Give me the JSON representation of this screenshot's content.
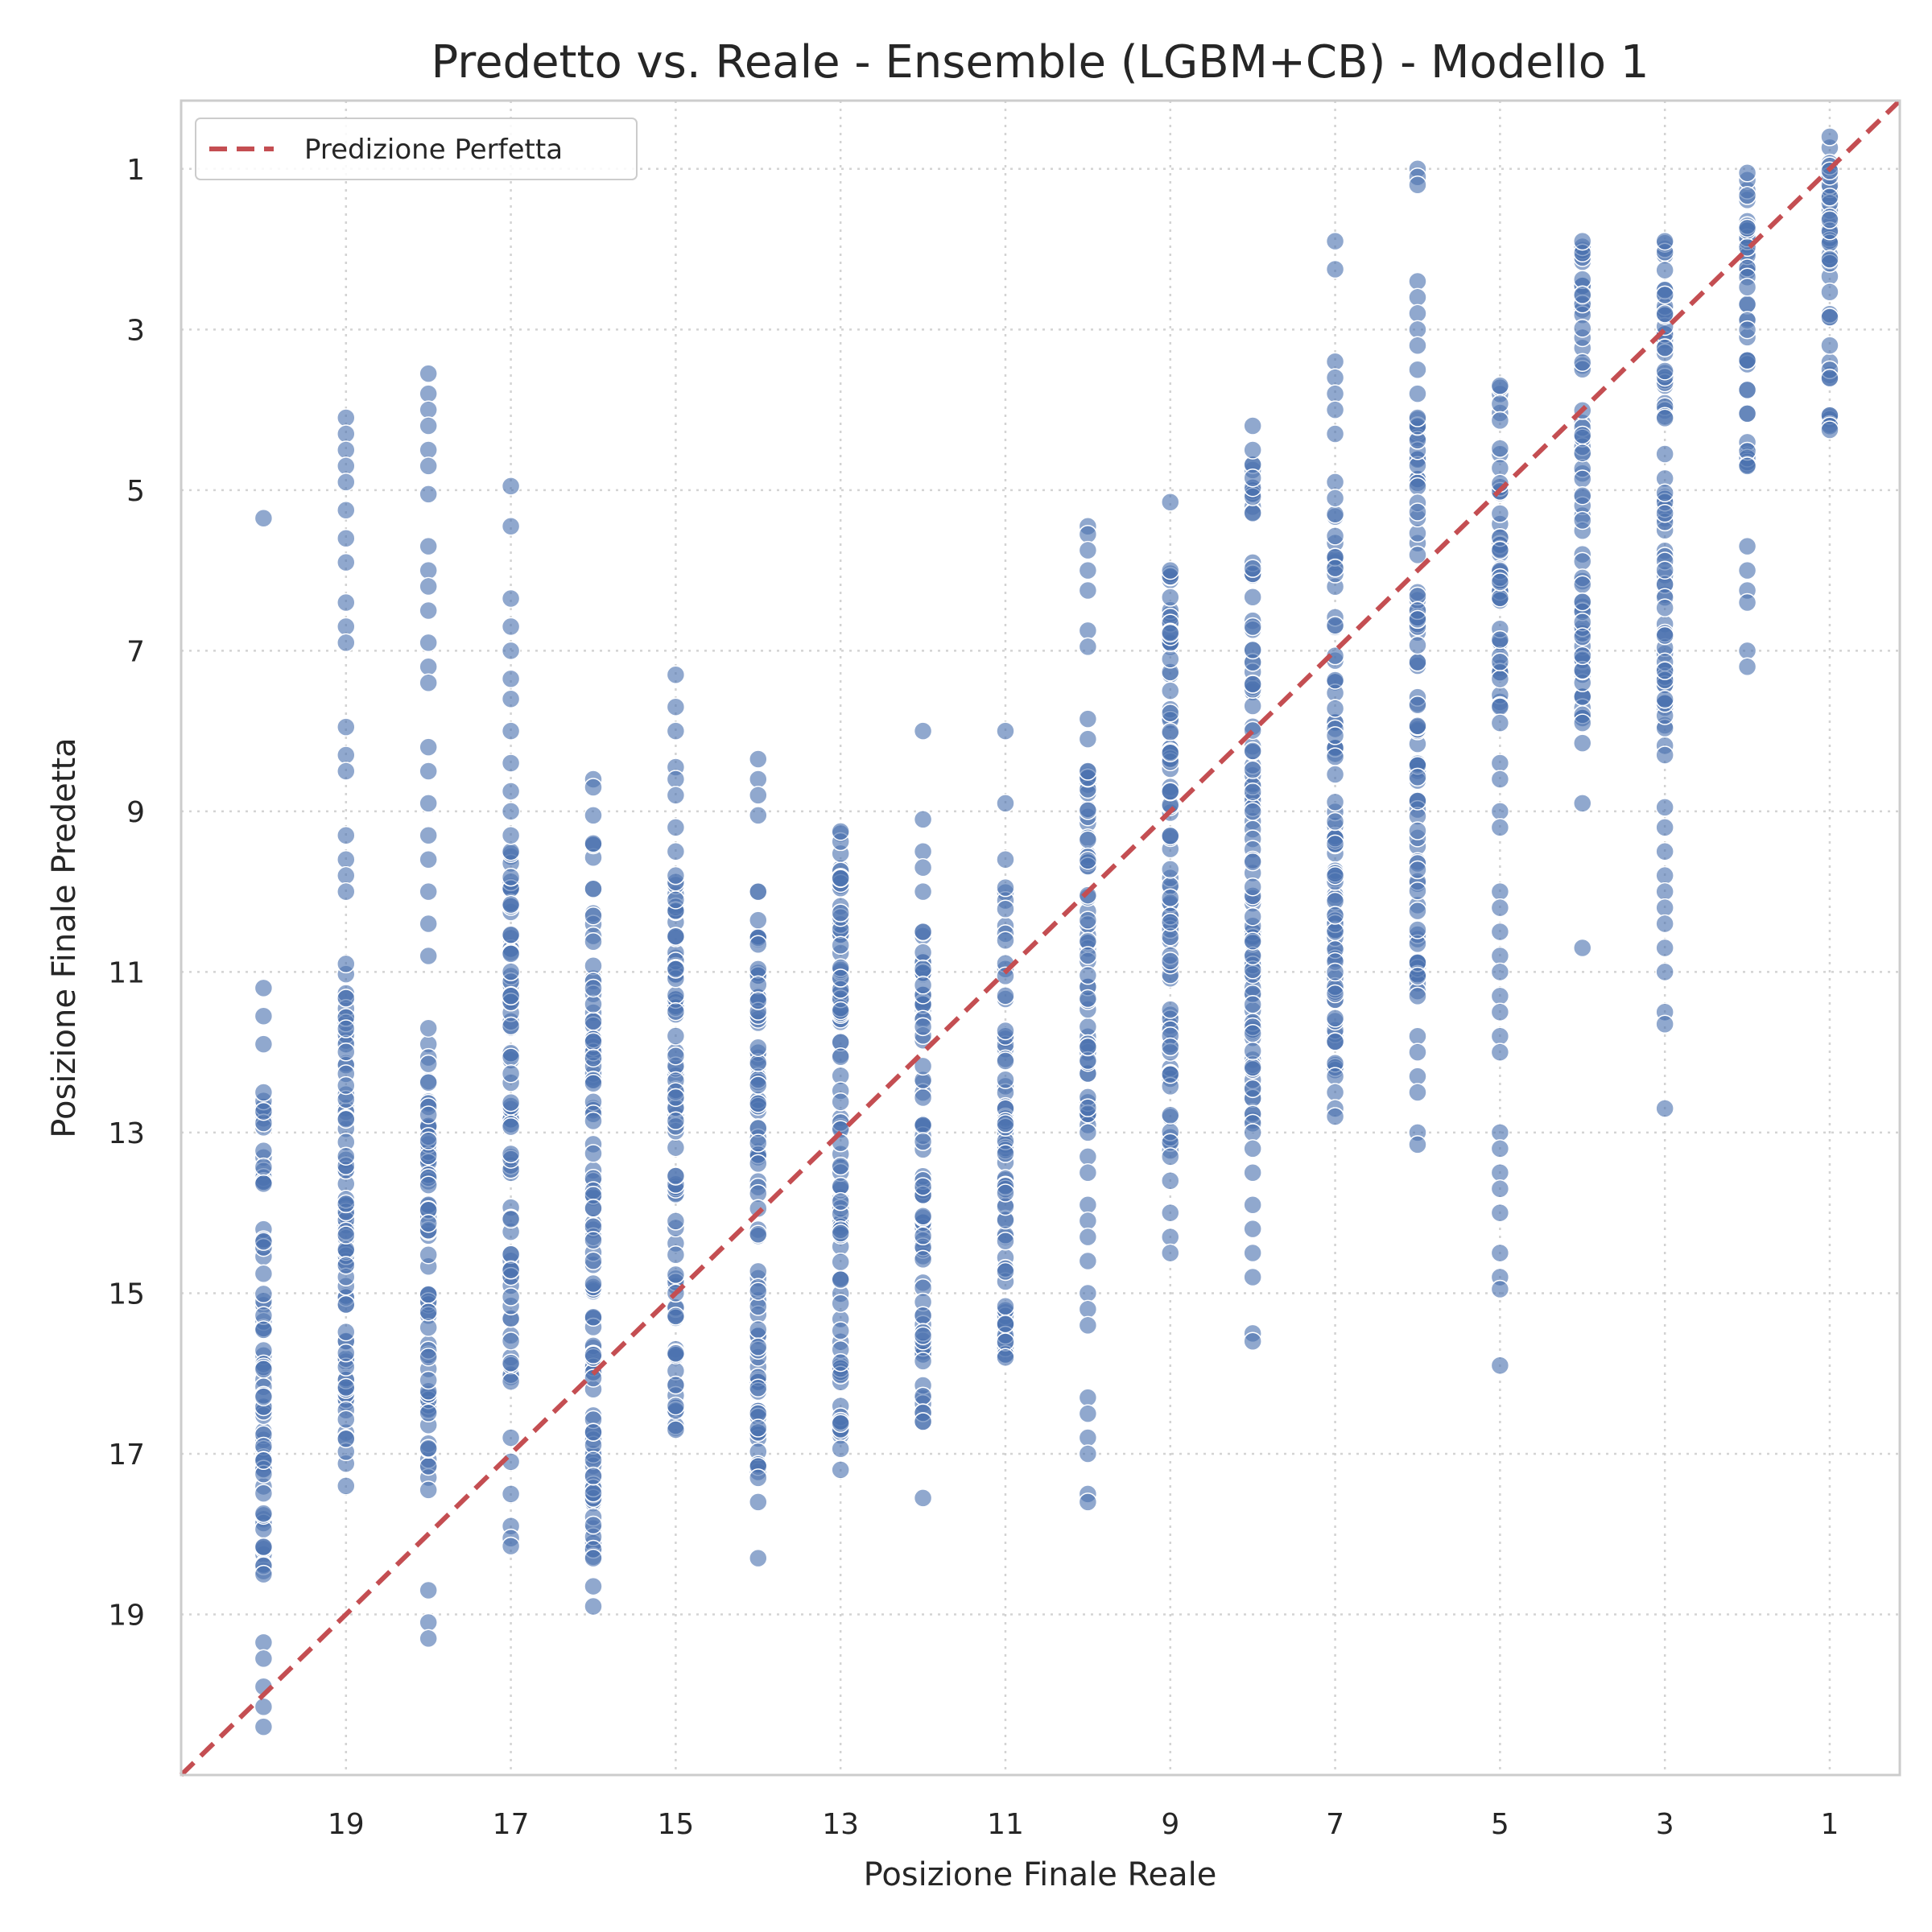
{
  "chart_data": {
    "type": "scatter",
    "title": "Predetto vs. Reale - Ensemble (LGBM+CB) - Modello 1",
    "xlabel": "Posizione Finale Reale",
    "ylabel": "Posizione Finale Predetta",
    "xlim": [
      21,
      0.15
    ],
    "ylim": [
      21,
      0.15
    ],
    "x_inverted": true,
    "y_inverted": true,
    "x_ticks": [
      19,
      17,
      15,
      13,
      11,
      9,
      7,
      5,
      3,
      1
    ],
    "y_ticks": [
      1,
      3,
      5,
      7,
      9,
      11,
      13,
      15,
      17,
      19
    ],
    "x_tick_labels": [
      "19",
      "17",
      "15",
      "13",
      "11",
      "9",
      "7",
      "5",
      "3",
      "1"
    ],
    "y_tick_labels": [
      "1",
      "3",
      "5",
      "7",
      "9",
      "11",
      "13",
      "15",
      "17",
      "19"
    ],
    "grid": true,
    "legend": {
      "position": "top-left",
      "entries": [
        "Predizione Perfetta"
      ]
    },
    "reference_line": {
      "label": "Predizione Perfetta",
      "style": "dashed",
      "color": "#c44e52",
      "equation": "y = x"
    },
    "point_color": "#4c72b0",
    "series": [
      {
        "columns": [
          {
            "x": 20,
            "y_min": 12.5,
            "y_max": 18.5,
            "extra": [
              5.35,
              11.2,
              11.55,
              11.9,
              19.35,
              19.55,
              19.9,
              20.15,
              20.4
            ]
          },
          {
            "x": 19,
            "y_min": 10.9,
            "y_max": 17.4,
            "extra": [
              4.1,
              4.3,
              4.5,
              4.7,
              4.9,
              5.25,
              5.6,
              5.9,
              6.4,
              6.7,
              6.9,
              7.95,
              8.3,
              8.5,
              9.3,
              9.6,
              9.8,
              10.0
            ]
          },
          {
            "x": 18,
            "y_min": 11.7,
            "y_max": 17.45,
            "extra": [
              3.55,
              3.8,
              4.0,
              4.2,
              4.5,
              4.7,
              5.05,
              5.7,
              6.0,
              6.2,
              6.5,
              6.9,
              7.2,
              7.4,
              8.2,
              8.5,
              8.9,
              9.3,
              9.6,
              10.0,
              10.4,
              10.8,
              18.7,
              19.1,
              19.3
            ]
          },
          {
            "x": 17,
            "y_min": 9.5,
            "y_max": 16.1,
            "extra": [
              4.95,
              5.45,
              6.35,
              6.7,
              7.0,
              7.35,
              7.6,
              8.0,
              8.4,
              8.75,
              9.0,
              9.3,
              16.8,
              17.1,
              17.5,
              17.9,
              18.05,
              18.15
            ]
          },
          {
            "x": 16,
            "y_min": 9.4,
            "y_max": 18.3,
            "extra": [
              8.6,
              8.7,
              9.05,
              18.65,
              18.9
            ]
          },
          {
            "x": 15,
            "y_min": 9.8,
            "y_max": 16.7,
            "extra": [
              7.3,
              7.7,
              8.0,
              8.45,
              8.6,
              8.8,
              9.2,
              9.5
            ]
          },
          {
            "x": 14,
            "y_min": 10.0,
            "y_max": 17.3,
            "extra": [
              8.35,
              8.6,
              8.8,
              9.05,
              17.6,
              18.3
            ]
          },
          {
            "x": 13,
            "y_min": 9.25,
            "y_max": 17.2,
            "extra": []
          },
          {
            "x": 12,
            "y_min": 10.5,
            "y_max": 16.6,
            "extra": [
              8.0,
              9.1,
              9.5,
              9.7,
              10.0,
              17.55
            ]
          },
          {
            "x": 11,
            "y_min": 9.95,
            "y_max": 15.8,
            "extra": [
              8.0,
              8.9,
              9.6
            ]
          },
          {
            "x": 10,
            "y_min": 8.5,
            "y_max": 13.0,
            "extra": [
              5.45,
              5.55,
              5.75,
              6.0,
              6.25,
              6.75,
              6.95,
              7.85,
              8.1,
              13.3,
              13.5,
              13.9,
              14.1,
              14.3,
              14.6,
              15.0,
              15.2,
              15.4,
              16.3,
              16.5,
              16.8,
              17.0,
              17.5,
              17.6
            ]
          },
          {
            "x": 9,
            "y_min": 6.0,
            "y_max": 13.3,
            "extra": [
              5.15,
              13.6,
              14.0,
              14.3,
              14.5
            ]
          },
          {
            "x": 8,
            "y_min": 4.5,
            "y_max": 13.0,
            "extra": [
              4.2,
              13.2,
              13.5,
              13.9,
              14.2,
              14.5,
              14.8,
              15.5,
              15.6
            ]
          },
          {
            "x": 7,
            "y_min": 5.3,
            "y_max": 12.3,
            "extra": [
              1.9,
              2.25,
              3.4,
              3.6,
              3.8,
              4.0,
              4.3,
              4.9,
              5.1,
              12.5,
              12.7,
              12.8
            ]
          },
          {
            "x": 6,
            "y_min": 4.1,
            "y_max": 11.3,
            "extra": [
              1.0,
              1.1,
              1.2,
              2.4,
              2.6,
              2.8,
              3.0,
              3.2,
              3.5,
              3.8,
              11.8,
              12.0,
              12.3,
              12.5,
              13.0,
              13.15
            ]
          },
          {
            "x": 5,
            "y_min": 3.7,
            "y_max": 7.9,
            "extra": [
              8.4,
              8.6,
              9.0,
              9.2,
              10.0,
              10.2,
              10.5,
              10.8,
              11.0,
              11.3,
              11.5,
              11.8,
              12.0,
              13.0,
              13.2,
              13.5,
              13.7,
              14.0,
              14.5,
              14.8,
              14.95,
              15.9
            ]
          },
          {
            "x": 4,
            "y_min": 1.9,
            "y_max": 7.9,
            "extra": [
              8.15,
              8.9,
              10.7
            ]
          },
          {
            "x": 3,
            "y_min": 1.9,
            "y_max": 8.3,
            "extra": [
              8.95,
              9.2,
              9.5,
              9.8,
              10.0,
              10.2,
              10.4,
              10.7,
              11.0,
              11.5,
              11.65,
              12.7
            ]
          },
          {
            "x": 2,
            "y_min": 1.05,
            "y_max": 4.7,
            "extra": [
              5.7,
              6.0,
              6.25,
              6.4,
              7.0,
              7.2
            ]
          },
          {
            "x": 1,
            "y_min": 0.6,
            "y_max": 4.25,
            "extra": []
          }
        ]
      }
    ]
  }
}
